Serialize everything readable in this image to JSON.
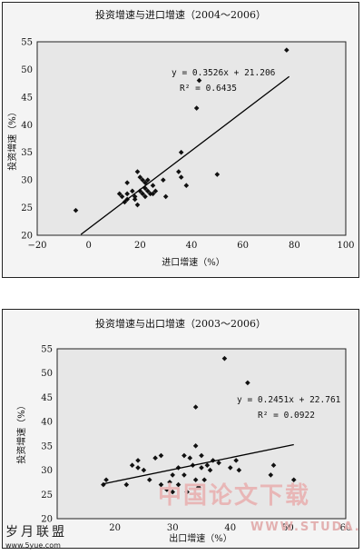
{
  "chart_data": [
    {
      "type": "scatter",
      "title": "投资增速与进口增速（2004～2006）",
      "xlabel": "进口增速（%）",
      "ylabel": "投资增速（%）",
      "xlim": [
        -20,
        100
      ],
      "ylim": [
        20,
        55
      ],
      "xticks": [
        "−20",
        "0",
        "20",
        "40",
        "60",
        "80",
        "100"
      ],
      "yticks": [
        "20",
        "25",
        "30",
        "35",
        "40",
        "45",
        "50",
        "55"
      ],
      "equation": "y = 0.3526x + 21.206",
      "r2": "R² = 0.6435",
      "trendline": {
        "slope": 0.3526,
        "intercept": 21.206,
        "x_range": [
          -3,
          78
        ]
      },
      "points": [
        [
          -5,
          24.5
        ],
        [
          12,
          27.5
        ],
        [
          13,
          27
        ],
        [
          14,
          26
        ],
        [
          15,
          27.5
        ],
        [
          15,
          26.5
        ],
        [
          15,
          29.5
        ],
        [
          17,
          28
        ],
        [
          18,
          26.5
        ],
        [
          18,
          27
        ],
        [
          19,
          25.5
        ],
        [
          19,
          31.5
        ],
        [
          20,
          30.5
        ],
        [
          20,
          28
        ],
        [
          21,
          30
        ],
        [
          21,
          27.5
        ],
        [
          22,
          29.5
        ],
        [
          22,
          27
        ],
        [
          22,
          28.5
        ],
        [
          23,
          30
        ],
        [
          23,
          28
        ],
        [
          24,
          27.5
        ],
        [
          25,
          27.5
        ],
        [
          25,
          29
        ],
        [
          26,
          28
        ],
        [
          29,
          30
        ],
        [
          30,
          27
        ],
        [
          35,
          31.5
        ],
        [
          36,
          35
        ],
        [
          36,
          30.5
        ],
        [
          38,
          29
        ],
        [
          42,
          43
        ],
        [
          43,
          48
        ],
        [
          50,
          31
        ],
        [
          77,
          53.5
        ]
      ]
    },
    {
      "type": "scatter",
      "title": "投资增速与出口增速（2003～2006）",
      "xlabel": "出口增速（%）",
      "ylabel": "投资增速（%）",
      "xlim": [
        10,
        60
      ],
      "ylim": [
        20,
        55
      ],
      "xticks": [
        "20",
        "30",
        "40",
        "50",
        "60"
      ],
      "yticks": [
        "20",
        "25",
        "30",
        "35",
        "40",
        "45",
        "50",
        "55"
      ],
      "equation": "y = 0.2451x + 22.761",
      "r2": "R² = 0.0922",
      "trendline": {
        "slope": 0.2451,
        "intercept": 22.761,
        "x_range": [
          18,
          51
        ]
      },
      "points": [
        [
          18,
          27
        ],
        [
          18.5,
          28
        ],
        [
          22,
          27
        ],
        [
          23,
          31
        ],
        [
          24,
          30.5
        ],
        [
          24,
          32
        ],
        [
          25,
          30
        ],
        [
          26,
          28
        ],
        [
          27,
          32.5
        ],
        [
          28,
          33
        ],
        [
          28,
          27
        ],
        [
          29,
          26
        ],
        [
          29.5,
          27.5
        ],
        [
          30,
          25.5
        ],
        [
          30,
          29
        ],
        [
          31,
          27
        ],
        [
          31,
          30.5
        ],
        [
          32,
          33
        ],
        [
          32,
          29
        ],
        [
          32.5,
          25.5
        ],
        [
          33,
          32.5
        ],
        [
          33.5,
          31
        ],
        [
          34,
          43
        ],
        [
          34,
          35
        ],
        [
          34,
          28
        ],
        [
          34.5,
          26.5
        ],
        [
          35,
          30.5
        ],
        [
          35,
          33
        ],
        [
          35.5,
          28
        ],
        [
          36,
          31
        ],
        [
          36.5,
          30
        ],
        [
          37,
          32
        ],
        [
          38,
          31.5
        ],
        [
          39,
          53
        ],
        [
          40,
          30.5
        ],
        [
          41,
          32
        ],
        [
          41.5,
          30
        ],
        [
          43,
          48
        ],
        [
          47,
          29
        ],
        [
          47.5,
          31
        ],
        [
          51,
          28
        ]
      ]
    }
  ],
  "watermarks": {
    "center_cn": "中国论文下载",
    "center_url": "WWW.STUDA.",
    "left_cn": "岁月联盟",
    "left_url": "www.5yue.com"
  }
}
